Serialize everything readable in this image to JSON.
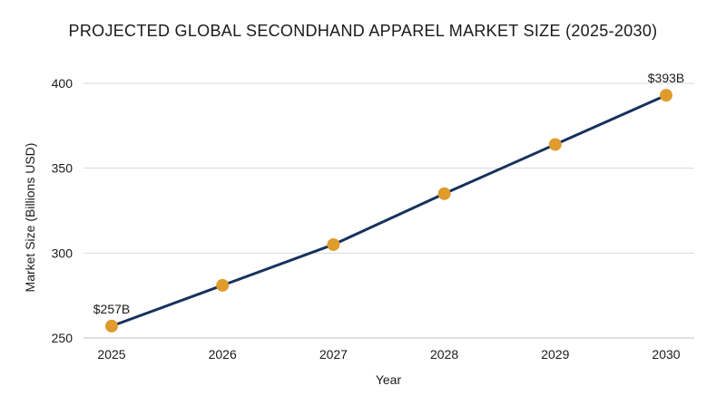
{
  "chart_data": {
    "type": "line",
    "title": "PROJECTED GLOBAL SECONDHAND APPAREL MARKET SIZE (2025-2030)",
    "xlabel": "Year",
    "ylabel": "Market Size (Billions USD)",
    "categories": [
      "2025",
      "2026",
      "2027",
      "2028",
      "2029",
      "2030"
    ],
    "values": [
      257,
      281,
      305,
      335,
      364,
      393
    ],
    "yticks": [
      250,
      300,
      350,
      400
    ],
    "ylim": [
      250,
      400
    ],
    "grid": true,
    "legend": "none",
    "annotations": [
      {
        "index": 0,
        "text": "$257B"
      },
      {
        "index": 5,
        "text": "$393B"
      }
    ],
    "colors": {
      "line": "#16325c",
      "marker": "#e09b2d"
    }
  }
}
